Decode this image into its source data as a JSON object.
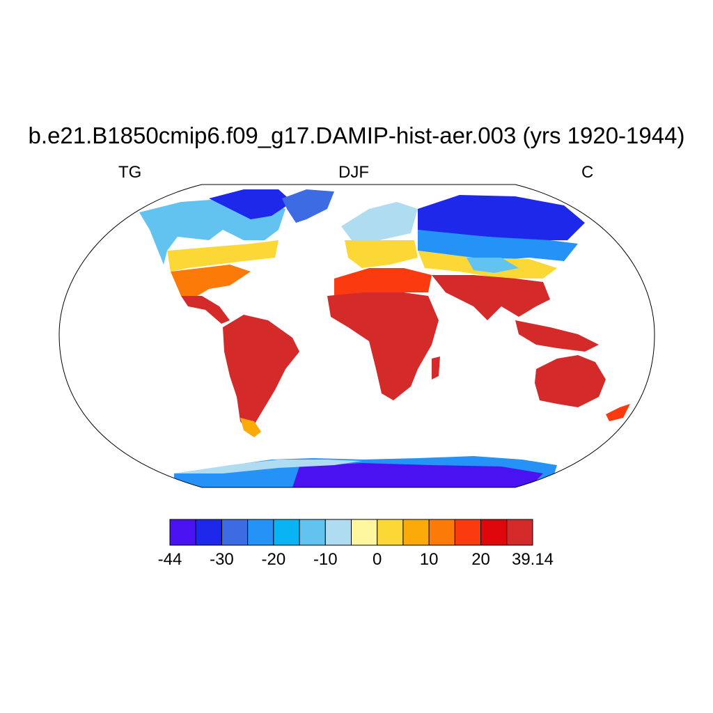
{
  "title": "b.e21.B1850cmip6.f09_g17.DAMIP-hist-aer.003 (yrs 1920-1944)",
  "left_label": "TG",
  "center_label": "DJF",
  "right_label": "C",
  "colorbar": {
    "colors": [
      "#4a12f0",
      "#1e28eb",
      "#3d6be3",
      "#2492f7",
      "#0ab4f4",
      "#62c3f0",
      "#b0dcf2",
      "#fff7a0",
      "#fcd837",
      "#fcaa0a",
      "#fc7a08",
      "#fb3a0f",
      "#e0070c",
      "#d42a2a"
    ],
    "tick_labels": [
      "-44",
      "-30",
      "-20",
      "-10",
      "0",
      "10",
      "20",
      "39.14"
    ]
  }
}
